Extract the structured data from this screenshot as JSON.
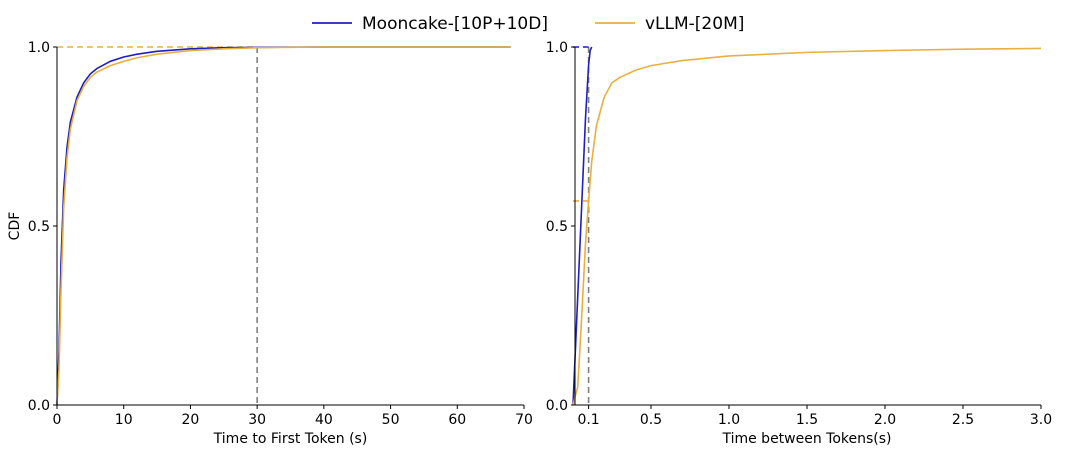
{
  "legend": {
    "entries": [
      {
        "label": "Mooncake-[10P+10D]",
        "color": "#1f1fbf"
      },
      {
        "label": "vLLM-[20M]",
        "color": "#e8b040"
      }
    ]
  },
  "chart_data": [
    {
      "type": "line",
      "title": "",
      "xlabel": "Time to First Token (s)",
      "ylabel": "CDF",
      "xlim": [
        0,
        70
      ],
      "ylim": [
        0,
        1
      ],
      "xticks": [
        "0",
        "10",
        "20",
        "30",
        "40",
        "50",
        "60",
        "70"
      ],
      "xtick_values": [
        0,
        10,
        20,
        30,
        40,
        50,
        60,
        70
      ],
      "yticks": [
        "0.0",
        "0.5",
        "1.0"
      ],
      "ytick_values": [
        0,
        0.5,
        1.0
      ],
      "grid": false,
      "legend_position": "top-center",
      "reference_lines": [
        {
          "orientation": "vertical",
          "x": 30,
          "color": "#808080",
          "style": "dashed"
        },
        {
          "orientation": "horizontal",
          "y": 1.0,
          "x_to": 30,
          "color": "#e8b040",
          "style": "dashed"
        }
      ],
      "series": [
        {
          "name": "Mooncake-[10P+10D]",
          "color": "#1f1fbf",
          "x": [
            0,
            0.3,
            0.6,
            1,
            1.5,
            2,
            3,
            4,
            5,
            6,
            8,
            10,
            12,
            15,
            20,
            25,
            30,
            40,
            50,
            60,
            68
          ],
          "y": [
            0,
            0.15,
            0.4,
            0.6,
            0.72,
            0.79,
            0.86,
            0.9,
            0.925,
            0.94,
            0.96,
            0.972,
            0.98,
            0.988,
            0.995,
            0.998,
            0.999,
            1.0,
            1.0,
            1.0,
            1.0
          ]
        },
        {
          "name": "vLLM-[20M]",
          "color": "#e8b040",
          "x": [
            0,
            0.3,
            0.6,
            1,
            1.5,
            2,
            3,
            4,
            5,
            6,
            8,
            10,
            12,
            15,
            20,
            25,
            30,
            40,
            50,
            60,
            68
          ],
          "y": [
            0,
            0.1,
            0.32,
            0.55,
            0.69,
            0.77,
            0.85,
            0.89,
            0.915,
            0.93,
            0.948,
            0.96,
            0.97,
            0.98,
            0.99,
            0.995,
            0.998,
            1.0,
            1.0,
            1.0,
            1.0
          ]
        }
      ]
    },
    {
      "type": "line",
      "title": "",
      "xlabel": "Time between Tokens(s)",
      "ylabel": "",
      "xlim": [
        0,
        3.0
      ],
      "ylim": [
        0,
        1
      ],
      "xticks": [
        "0.1",
        "0.5",
        "1.0",
        "1.5",
        "2.0",
        "2.5",
        "3.0"
      ],
      "xtick_values": [
        0.1,
        0.5,
        1.0,
        1.5,
        2.0,
        2.5,
        3.0
      ],
      "yticks": [
        "0.0",
        "0.5",
        "1.0"
      ],
      "ytick_values": [
        0,
        0.5,
        1.0
      ],
      "grid": false,
      "reference_lines": [
        {
          "orientation": "vertical",
          "x": 0.1,
          "color": "#808080",
          "style": "dashed"
        },
        {
          "orientation": "horizontal",
          "y": 1.0,
          "x_to": 0.1,
          "color": "#1f1fbf",
          "style": "dashed"
        },
        {
          "orientation": "horizontal",
          "y": 0.57,
          "x_to": 0.1,
          "color": "#e8b040",
          "style": "dashed"
        }
      ],
      "series": [
        {
          "name": "Mooncake-[10P+10D]",
          "color": "#1f1fbf",
          "x": [
            0,
            0.02,
            0.04,
            0.06,
            0.08,
            0.1,
            0.11,
            0.12
          ],
          "y": [
            0,
            0.2,
            0.4,
            0.6,
            0.8,
            0.95,
            0.99,
            1.0
          ]
        },
        {
          "name": "vLLM-[20M]",
          "color": "#e8b040",
          "x": [
            0,
            0.03,
            0.05,
            0.08,
            0.1,
            0.12,
            0.15,
            0.2,
            0.25,
            0.3,
            0.4,
            0.5,
            0.7,
            1.0,
            1.5,
            2.0,
            2.5,
            3.0
          ],
          "y": [
            0,
            0.05,
            0.2,
            0.45,
            0.57,
            0.68,
            0.78,
            0.86,
            0.9,
            0.915,
            0.935,
            0.948,
            0.962,
            0.975,
            0.985,
            0.99,
            0.994,
            0.996
          ]
        }
      ]
    }
  ]
}
